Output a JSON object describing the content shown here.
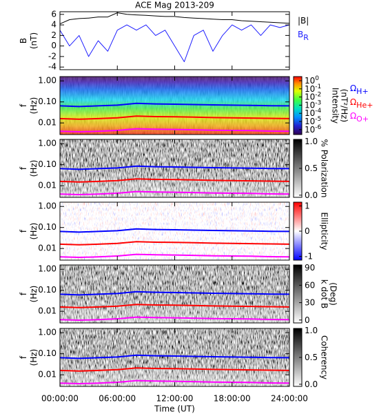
{
  "chart_data": [
    {
      "type": "line",
      "title": "ACE Mag 2013-209",
      "ylabel": [
        "B",
        "(nT)"
      ],
      "xlim": [
        0,
        24
      ],
      "xticks": [
        0,
        6,
        12,
        18,
        24
      ],
      "ylim": [
        -4.5,
        6.5
      ],
      "yticks": [
        -4,
        -2,
        0,
        2,
        4,
        6
      ],
      "x": [
        0,
        1,
        2,
        3,
        4,
        5,
        6,
        7,
        8,
        9,
        10,
        11,
        12,
        13,
        14,
        15,
        16,
        17,
        18,
        19,
        20,
        21,
        22,
        23,
        24
      ],
      "series": [
        {
          "name": "|B|",
          "color": "#000000",
          "values": [
            4.2,
            5,
            5.2,
            5.3,
            5.5,
            5.5,
            6.3,
            6.0,
            5.9,
            5.8,
            5.7,
            5.6,
            5.6,
            5.4,
            5.3,
            5.2,
            5.1,
            5.0,
            5.0,
            4.8,
            4.7,
            4.6,
            4.5,
            4.4,
            4.3
          ]
        },
        {
          "name": "B",
          "name_sub": "R",
          "color": "#1c1cff",
          "values": [
            3,
            0,
            2,
            -2,
            1,
            -1,
            3,
            4,
            3,
            4,
            2,
            3,
            0,
            -3,
            2,
            3,
            -1,
            2,
            4,
            3,
            4,
            2,
            4,
            3.5,
            4
          ]
        }
      ]
    },
    {
      "type": "spectrogram",
      "ylabel": [
        "f",
        "(Hz)"
      ],
      "log": true,
      "xlim": [
        0,
        24
      ],
      "xticks": [
        0,
        6,
        12,
        18,
        24
      ],
      "ylim": [
        0.0028,
        1.6
      ],
      "yticks": [
        {
          "value": 0.01,
          "label": "0.01"
        },
        {
          "value": 0.1,
          "label": "0.10"
        },
        {
          "value": 1,
          "label": "1.00"
        }
      ],
      "colormap": "rainbow",
      "clog": true,
      "clim": [
        2.5e-07,
        3.2
      ],
      "cticks": [
        {
          "value": 1,
          "label": "10",
          "exponent": "0"
        },
        {
          "value": 0.1,
          "label": "10",
          "exponent": "-1"
        },
        {
          "value": 0.01,
          "label": "10",
          "exponent": "-2"
        },
        {
          "value": 0.001,
          "label": "10",
          "exponent": "-3"
        },
        {
          "value": 0.0001,
          "label": "10",
          "exponent": "-4"
        },
        {
          "value": 1e-05,
          "label": "10",
          "exponent": "-5"
        },
        {
          "value": 1e-06,
          "label": "10",
          "exponent": "-6"
        }
      ],
      "colorbar_label": [
        "Intensity",
        "(nT²/Hz)"
      ],
      "x": [
        0,
        2,
        4,
        6,
        8,
        10,
        12,
        14,
        16,
        18,
        20,
        22,
        24
      ],
      "series": [
        {
          "name": "Ω",
          "name_sub": "H+",
          "color": "#0000ff",
          "values": [
            0.065,
            0.06,
            0.065,
            0.07,
            0.085,
            0.08,
            0.078,
            0.075,
            0.072,
            0.07,
            0.068,
            0.066,
            0.065
          ]
        },
        {
          "name": "Ω",
          "name_sub": "He+",
          "color": "#ff0000",
          "values": [
            0.016,
            0.015,
            0.016,
            0.0175,
            0.021,
            0.02,
            0.0195,
            0.019,
            0.018,
            0.0175,
            0.017,
            0.0165,
            0.016
          ]
        },
        {
          "name": "Ω",
          "name_sub": "O+",
          "color": "#ff00ff",
          "values": [
            0.004,
            0.0038,
            0.004,
            0.0044,
            0.0053,
            0.005,
            0.0049,
            0.0047,
            0.0045,
            0.0044,
            0.0043,
            0.0041,
            0.004
          ]
        }
      ]
    },
    {
      "type": "spectrogram",
      "ylabel": [
        "f",
        "(Hz)"
      ],
      "log": true,
      "xlim": [
        0,
        24
      ],
      "xticks": [
        0,
        6,
        12,
        18,
        24
      ],
      "ylim": [
        0.0028,
        1.6
      ],
      "yticks": [
        {
          "value": 0.01,
          "label": "0.01"
        },
        {
          "value": 0.1,
          "label": "0.10"
        },
        {
          "value": 1,
          "label": "1.00"
        }
      ],
      "colormap": "gray",
      "clim": [
        -0.04,
        1.04
      ],
      "cticks": [
        {
          "value": 0,
          "label": "0.0"
        },
        {
          "value": 0.5,
          "label": "0.5"
        },
        {
          "value": 1,
          "label": "1.0"
        }
      ],
      "colorbar_label": [
        "% Polarization"
      ],
      "x": [
        0,
        2,
        4,
        6,
        8,
        10,
        12,
        14,
        16,
        18,
        20,
        22,
        24
      ],
      "series": [
        {
          "color": "#0000ff",
          "values": [
            0.065,
            0.06,
            0.065,
            0.07,
            0.085,
            0.08,
            0.078,
            0.075,
            0.072,
            0.07,
            0.068,
            0.066,
            0.065
          ]
        },
        {
          "color": "#ff0000",
          "values": [
            0.016,
            0.015,
            0.016,
            0.0175,
            0.021,
            0.02,
            0.0195,
            0.019,
            0.018,
            0.0175,
            0.017,
            0.0165,
            0.016
          ]
        },
        {
          "color": "#ff00ff",
          "values": [
            0.004,
            0.0038,
            0.004,
            0.0044,
            0.0053,
            0.005,
            0.0049,
            0.0047,
            0.0045,
            0.0044,
            0.0043,
            0.0041,
            0.004
          ]
        }
      ]
    },
    {
      "type": "spectrogram",
      "ylabel": [
        "f",
        "(Hz)"
      ],
      "log": true,
      "xlim": [
        0,
        24
      ],
      "xticks": [
        0,
        6,
        12,
        18,
        24
      ],
      "ylim": [
        0.0028,
        1.6
      ],
      "yticks": [
        {
          "value": 0.01,
          "label": "0.01"
        },
        {
          "value": 0.1,
          "label": "0.10"
        },
        {
          "value": 1,
          "label": "1.00"
        }
      ],
      "colormap": "bwr",
      "clim": [
        -1.15,
        1.15
      ],
      "cticks": [
        -1,
        0,
        1
      ],
      "colorbar_label": [
        "Ellipticity"
      ],
      "x": [
        0,
        2,
        4,
        6,
        8,
        10,
        12,
        14,
        16,
        18,
        20,
        22,
        24
      ],
      "series": [
        {
          "color": "#0000ff",
          "values": [
            0.065,
            0.06,
            0.065,
            0.07,
            0.085,
            0.08,
            0.078,
            0.075,
            0.072,
            0.07,
            0.068,
            0.066,
            0.065
          ]
        },
        {
          "color": "#ff0000",
          "values": [
            0.016,
            0.015,
            0.016,
            0.0175,
            0.021,
            0.02,
            0.0195,
            0.019,
            0.018,
            0.0175,
            0.017,
            0.0165,
            0.016
          ]
        },
        {
          "color": "#ff00ff",
          "values": [
            0.004,
            0.0038,
            0.004,
            0.0044,
            0.0053,
            0.005,
            0.0049,
            0.0047,
            0.0045,
            0.0044,
            0.0043,
            0.0041,
            0.004
          ]
        }
      ]
    },
    {
      "type": "spectrogram",
      "ylabel": [
        "f",
        "(Hz)"
      ],
      "log": true,
      "xlim": [
        0,
        24
      ],
      "xticks": [
        0,
        6,
        12,
        18,
        24
      ],
      "ylim": [
        0.0028,
        1.6
      ],
      "yticks": [
        {
          "value": 0.01,
          "label": "0.01"
        },
        {
          "value": 0.1,
          "label": "0.10"
        },
        {
          "value": 1,
          "label": "1.00"
        }
      ],
      "colormap": "gray",
      "clim": [
        -5,
        95
      ],
      "cticks": [
        0,
        30,
        60,
        90
      ],
      "colorbar_label": [
        "k dot B",
        "(Deg)"
      ],
      "x": [
        0,
        2,
        4,
        6,
        8,
        10,
        12,
        14,
        16,
        18,
        20,
        22,
        24
      ],
      "series": [
        {
          "color": "#0000ff",
          "values": [
            0.065,
            0.06,
            0.065,
            0.07,
            0.085,
            0.08,
            0.078,
            0.075,
            0.072,
            0.07,
            0.068,
            0.066,
            0.065
          ]
        },
        {
          "color": "#ff0000",
          "values": [
            0.016,
            0.015,
            0.016,
            0.0175,
            0.021,
            0.02,
            0.0195,
            0.019,
            0.018,
            0.0175,
            0.017,
            0.0165,
            0.016
          ]
        },
        {
          "color": "#ff00ff",
          "values": [
            0.004,
            0.0038,
            0.004,
            0.0044,
            0.0053,
            0.005,
            0.0049,
            0.0047,
            0.0045,
            0.0044,
            0.0043,
            0.0041,
            0.004
          ]
        }
      ]
    },
    {
      "type": "spectrogram",
      "ylabel": [
        "f",
        "(Hz)"
      ],
      "log": true,
      "xlim": [
        0,
        24
      ],
      "xticks": [
        {
          "value": 0,
          "label": "00:00:00"
        },
        {
          "value": 6,
          "label": "06:00:00"
        },
        {
          "value": 12,
          "label": "12:00:00"
        },
        {
          "value": 18,
          "label": "18:00:00"
        },
        {
          "value": 24,
          "label": "24:00:00"
        }
      ],
      "xlabel": "Time (UT)",
      "ylim": [
        0.0028,
        1.6
      ],
      "yticks": [
        {
          "value": 0.01,
          "label": "0.01"
        },
        {
          "value": 0.1,
          "label": "0.10"
        },
        {
          "value": 1,
          "label": "1.00"
        }
      ],
      "colormap": "gray",
      "clim": [
        -0.04,
        1.04
      ],
      "cticks": [
        {
          "value": 0,
          "label": "0.0"
        },
        {
          "value": 0.5,
          "label": "0.5"
        },
        {
          "value": 1,
          "label": "1.0"
        }
      ],
      "colorbar_label": [
        "Coherency"
      ],
      "x": [
        0,
        2,
        4,
        6,
        8,
        10,
        12,
        14,
        16,
        18,
        20,
        22,
        24
      ],
      "series": [
        {
          "color": "#0000ff",
          "values": [
            0.065,
            0.06,
            0.065,
            0.07,
            0.085,
            0.08,
            0.078,
            0.075,
            0.072,
            0.07,
            0.068,
            0.066,
            0.065
          ]
        },
        {
          "color": "#ff0000",
          "values": [
            0.016,
            0.015,
            0.016,
            0.0175,
            0.021,
            0.02,
            0.0195,
            0.019,
            0.018,
            0.0175,
            0.017,
            0.0165,
            0.016
          ]
        },
        {
          "color": "#ff00ff",
          "values": [
            0.004,
            0.0038,
            0.004,
            0.0044,
            0.0053,
            0.005,
            0.0049,
            0.0047,
            0.0045,
            0.0044,
            0.0043,
            0.0041,
            0.004
          ]
        }
      ]
    }
  ]
}
